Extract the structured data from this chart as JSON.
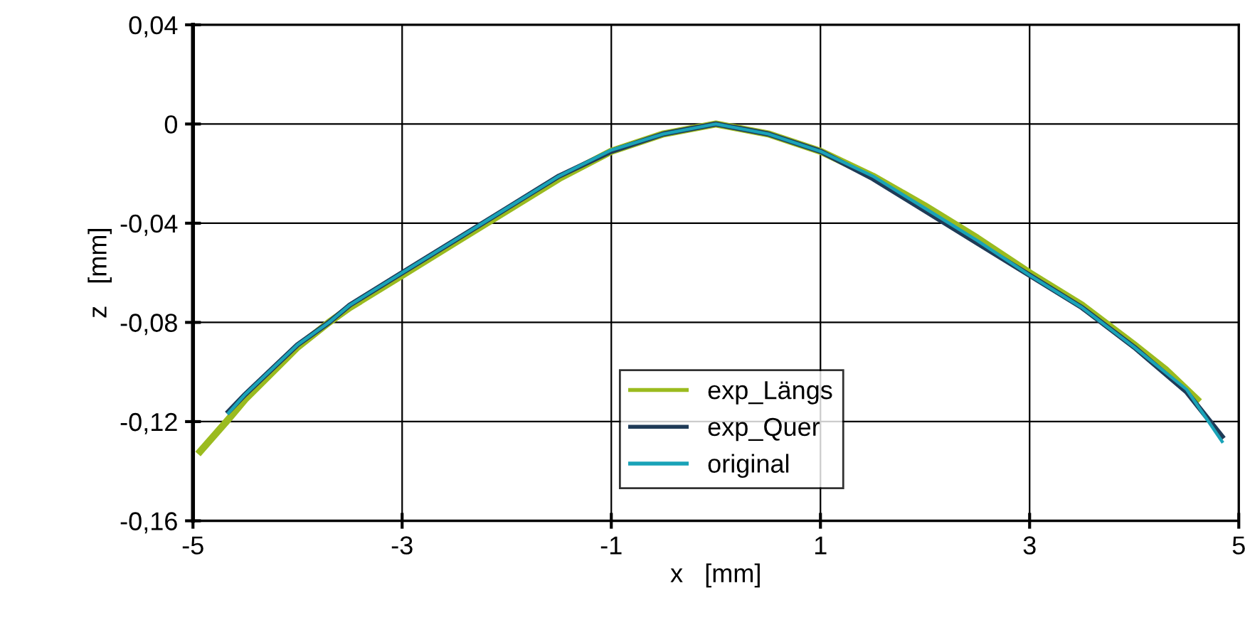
{
  "chart_data": {
    "type": "line",
    "xlabel": "x   [mm]",
    "ylabel": "z   [mm]",
    "xlim": [
      -5,
      5
    ],
    "xticks": [
      -5,
      -3,
      -1,
      1,
      3,
      5
    ],
    "ylim": [
      -0.16,
      0.04
    ],
    "yticks": [
      {
        "value": -0.16,
        "label": "-0,16"
      },
      {
        "value": -0.12,
        "label": "-0,12"
      },
      {
        "value": -0.08,
        "label": "-0,08"
      },
      {
        "value": -0.04,
        "label": "-0,04"
      },
      {
        "value": 0,
        "label": "0"
      },
      {
        "value": 0.04,
        "label": "0,04"
      }
    ],
    "grid": true,
    "legend": "bottom",
    "marker": "none",
    "line_style": "solid",
    "series": [
      {
        "name": "exp_Längs",
        "color": "#9bbb1f",
        "x": [
          -4.93,
          -4.66,
          -4.5,
          -4,
          -3.7,
          -3.5,
          -3,
          -2.5,
          -2,
          -1.5,
          -1,
          -0.5,
          0,
          0.5,
          1,
          1.5,
          2,
          2.5,
          3,
          3.5,
          4,
          4.3,
          4.6
        ],
        "values": [
          -0.132,
          -0.119,
          -0.111,
          -0.09,
          -0.08,
          -0.074,
          -0.061,
          -0.048,
          -0.035,
          -0.022,
          -0.011,
          -0.004,
          0,
          -0.004,
          -0.011,
          -0.021,
          -0.033,
          -0.046,
          -0.06,
          -0.073,
          -0.089,
          -0.099,
          -0.111
        ]
      },
      {
        "name": "exp_Quer",
        "color": "#1f3b57",
        "x": [
          -4.66,
          -4.5,
          -4,
          -3.7,
          -3.5,
          -3,
          -2.5,
          -2,
          -1.5,
          -1,
          -0.5,
          0,
          0.5,
          1,
          1.5,
          2,
          2.5,
          3,
          3.5,
          4,
          4.5,
          4.84
        ],
        "values": [
          -0.116,
          -0.109,
          -0.089,
          -0.08,
          -0.073,
          -0.06,
          -0.047,
          -0.034,
          -0.021,
          -0.011,
          -0.004,
          0,
          -0.004,
          -0.011,
          -0.022,
          -0.035,
          -0.048,
          -0.061,
          -0.074,
          -0.09,
          -0.108,
          -0.126
        ]
      },
      {
        "name": "original",
        "color": "#1aa3b8",
        "x": [
          -4.66,
          -4.5,
          -4,
          -3.7,
          -3.5,
          -3,
          -2.5,
          -2,
          -1.5,
          -1,
          -0.5,
          0,
          0.5,
          1,
          1.5,
          2,
          2.5,
          3,
          3.5,
          4,
          4.5,
          4.84
        ],
        "values": [
          -0.1165,
          -0.109,
          -0.089,
          -0.08,
          -0.073,
          -0.06,
          -0.047,
          -0.034,
          -0.021,
          -0.0105,
          -0.004,
          0,
          -0.004,
          -0.011,
          -0.021,
          -0.034,
          -0.047,
          -0.061,
          -0.074,
          -0.09,
          -0.107,
          -0.128
        ]
      }
    ]
  }
}
